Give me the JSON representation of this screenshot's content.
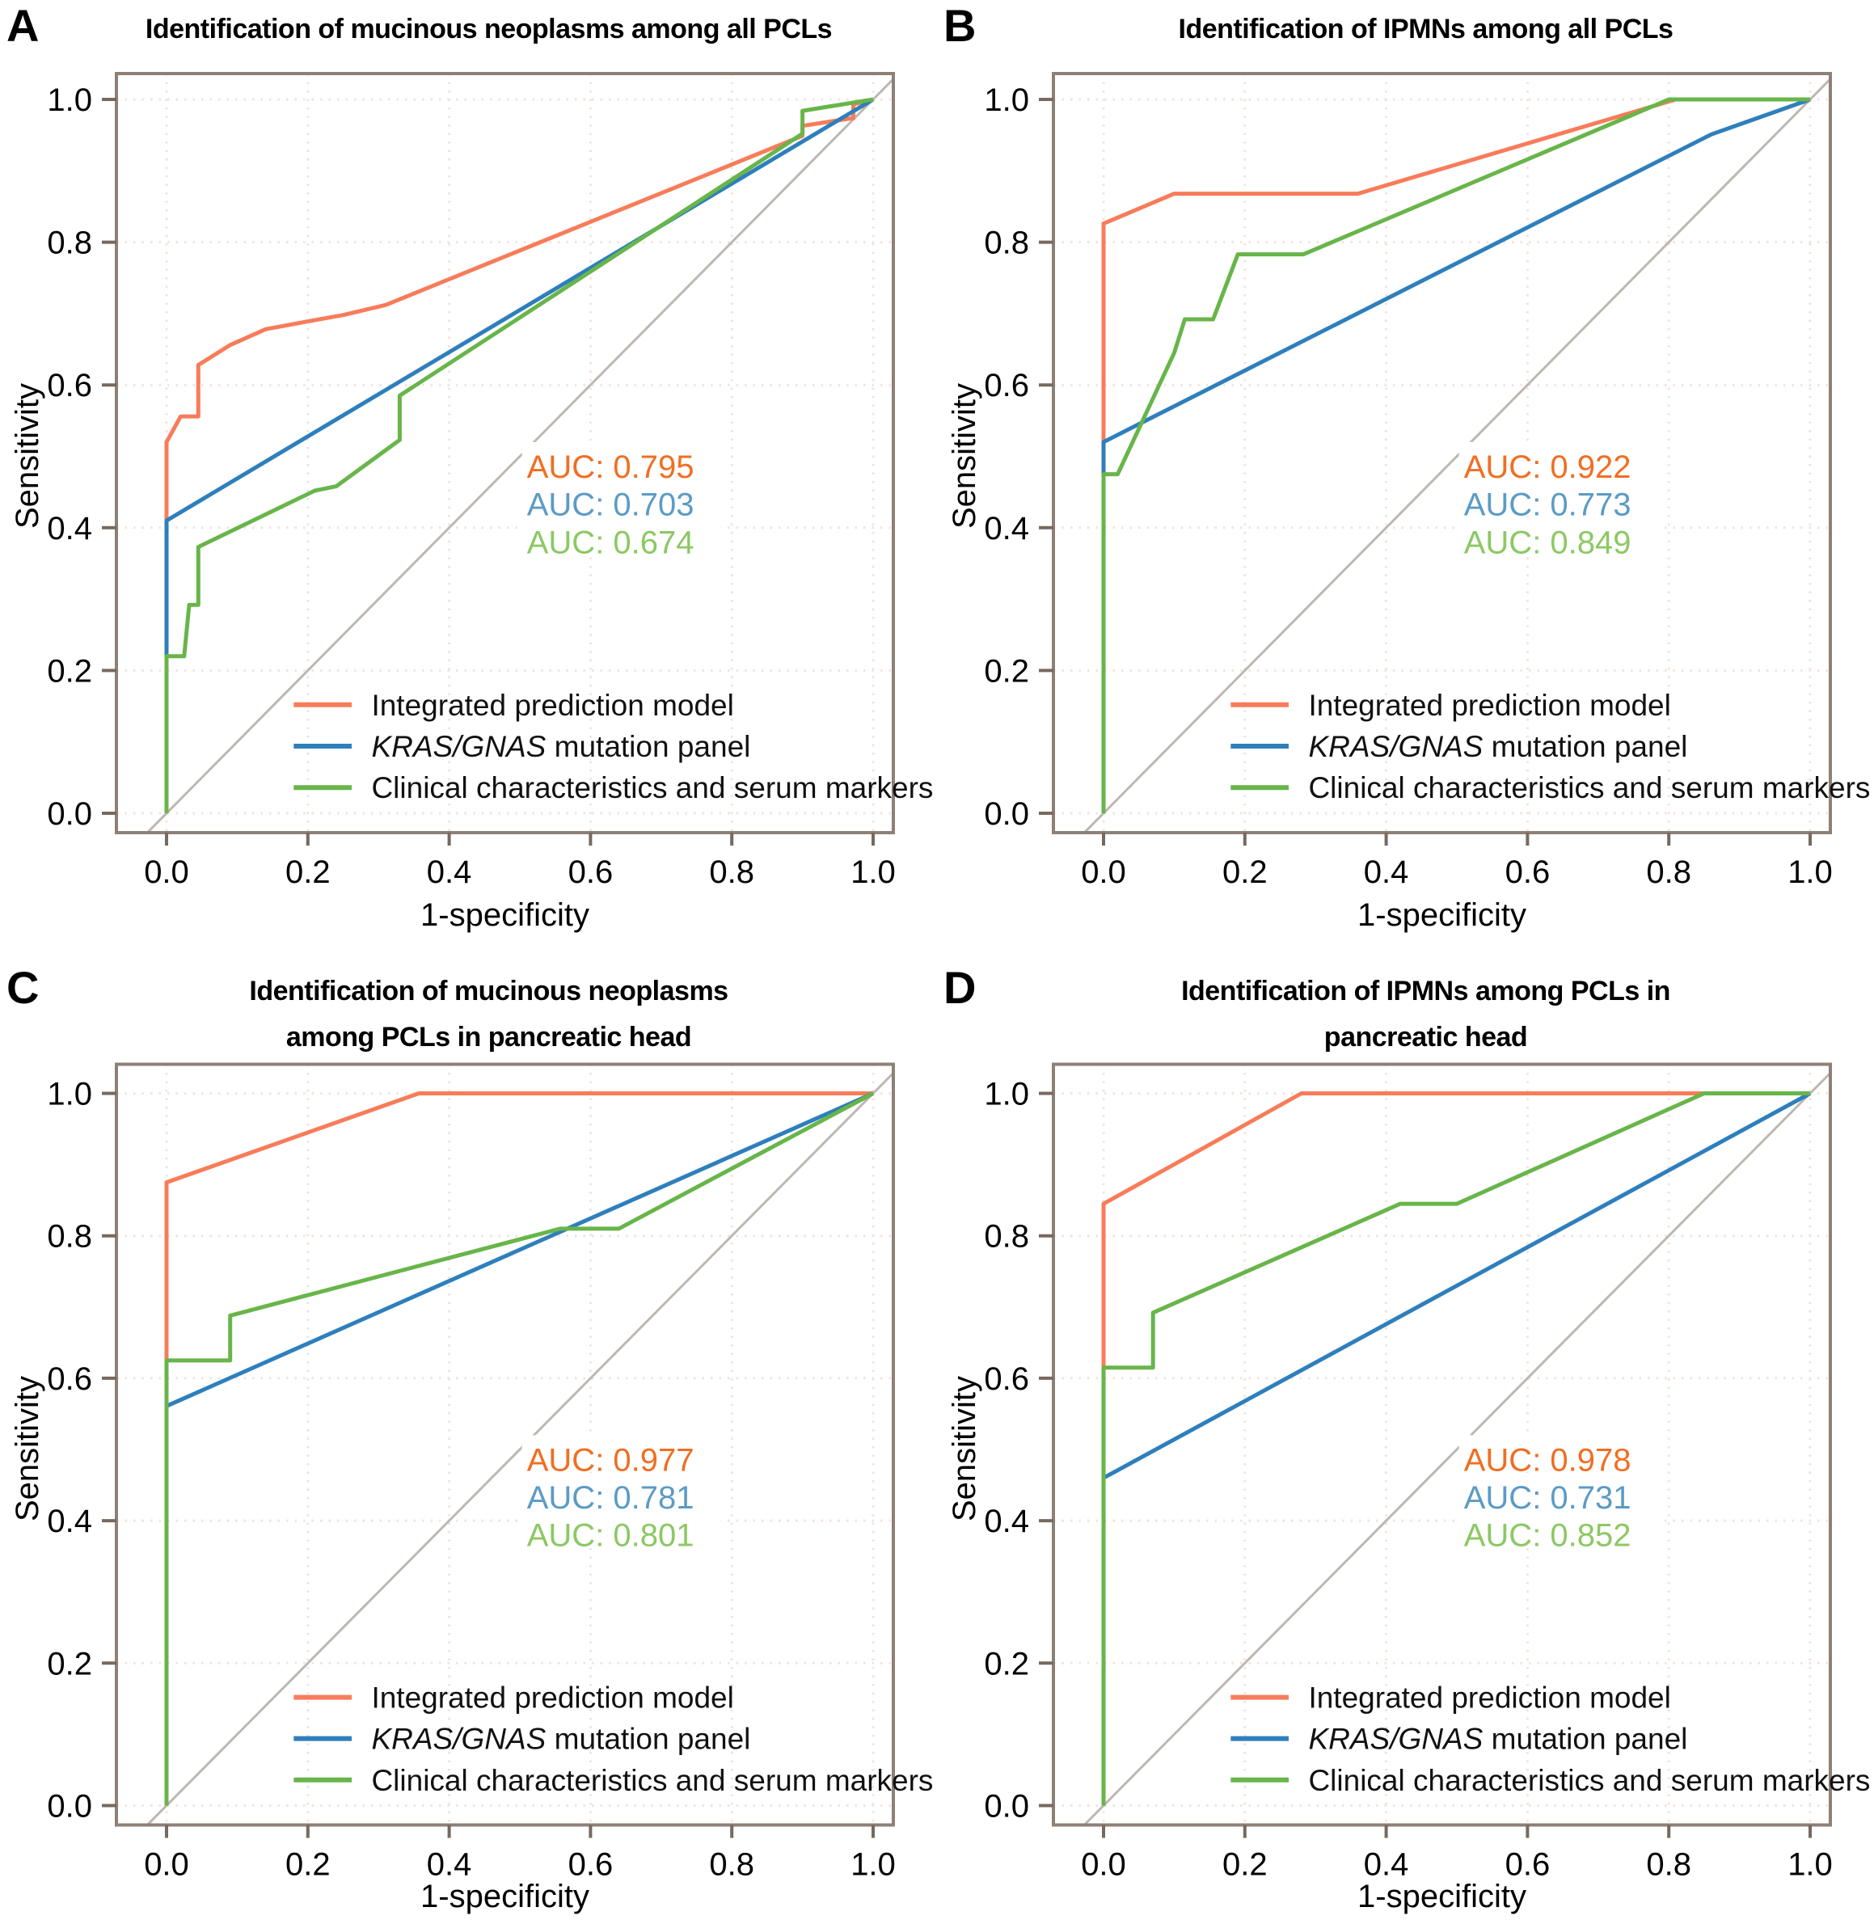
{
  "axes": {
    "xlabel": "1-specificity",
    "ylabel": "Sensitivity",
    "tick_labels": [
      "0.0",
      "0.2",
      "0.4",
      "0.6",
      "0.8",
      "1.0"
    ],
    "tick_values": [
      0,
      0.2,
      0.4,
      0.6,
      0.8,
      1.0
    ]
  },
  "colors": {
    "integrated": "#f87c5a",
    "kras": "#2e7fbc",
    "clinical": "#68b54a",
    "auc_integrated": "#f06e22",
    "auc_kras": "#5b9bc6",
    "auc_clinical": "#8cc863",
    "diagonal": "#bdb8b3",
    "frame": "#8e8076",
    "grid": "#f4e2de",
    "tick": "#77695f"
  },
  "legend": {
    "items": [
      {
        "key": "integrated",
        "label_italic": "",
        "label": "Integrated prediction model"
      },
      {
        "key": "kras",
        "label_italic": "KRAS/GNAS",
        "label": " mutation panel"
      },
      {
        "key": "clinical",
        "label_italic": "",
        "label": "Clinical characteristics and serum markers"
      }
    ]
  },
  "panels": [
    {
      "letter": "A",
      "title1": "Identification of mucinous neoplasms among all PCLs",
      "title2": "",
      "auc_labels": {
        "integrated": "AUC: 0.795",
        "kras": "AUC: 0.703",
        "clinical": "AUC: 0.674"
      }
    },
    {
      "letter": "B",
      "title1": "Identification of IPMNs among all PCLs",
      "title2": "",
      "auc_labels": {
        "integrated": "AUC: 0.922",
        "kras": "AUC: 0.773",
        "clinical": "AUC: 0.849"
      }
    },
    {
      "letter": "C",
      "title1": "Identification of mucinous neoplasms",
      "title2": "among PCLs in pancreatic head",
      "auc_labels": {
        "integrated": "AUC: 0.977",
        "kras": "AUC: 0.781",
        "clinical": "AUC: 0.801"
      }
    },
    {
      "letter": "D",
      "title1": "Identification of IPMNs among PCLs in",
      "title2": "pancreatic head",
      "auc_labels": {
        "integrated": "AUC: 0.978",
        "kras": "AUC: 0.731",
        "clinical": "AUC: 0.852"
      }
    }
  ],
  "chart_data": [
    {
      "panel": "A",
      "type": "line",
      "title": "Identification of mucinous neoplasms among all PCLs",
      "xlabel": "1-specificity",
      "ylabel": "Sensitivity",
      "xlim": [
        0,
        1
      ],
      "ylim": [
        0,
        1
      ],
      "xticks": [
        0,
        0.2,
        0.4,
        0.6,
        0.8,
        1.0
      ],
      "yticks": [
        0,
        0.2,
        0.4,
        0.6,
        0.8,
        1.0
      ],
      "grid": true,
      "diagonal_reference": true,
      "legend_position": "inside lower right",
      "series": [
        {
          "name": "Integrated prediction model",
          "key": "integrated",
          "auc": 0.795,
          "points": [
            [
              0,
              0
            ],
            [
              0,
              0.52
            ],
            [
              0.02,
              0.556
            ],
            [
              0.045,
              0.556
            ],
            [
              0.045,
              0.628
            ],
            [
              0.09,
              0.656
            ],
            [
              0.14,
              0.678
            ],
            [
              0.2,
              0.689
            ],
            [
              0.25,
              0.698
            ],
            [
              0.31,
              0.712
            ],
            [
              0.9,
              0.949
            ],
            [
              0.9,
              0.963
            ],
            [
              0.972,
              0.974
            ],
            [
              0.972,
              0.993
            ],
            [
              1,
              1
            ]
          ]
        },
        {
          "name": "KRAS/GNAS mutation panel",
          "key": "kras",
          "auc": 0.703,
          "points": [
            [
              0,
              0
            ],
            [
              0,
              0.41
            ],
            [
              1,
              1
            ]
          ]
        },
        {
          "name": "Clinical characteristics and serum markers",
          "key": "clinical",
          "auc": 0.674,
          "points": [
            [
              0,
              0
            ],
            [
              0,
              0.22
            ],
            [
              0.025,
              0.22
            ],
            [
              0.032,
              0.292
            ],
            [
              0.045,
              0.292
            ],
            [
              0.045,
              0.373
            ],
            [
              0.21,
              0.452
            ],
            [
              0.24,
              0.458
            ],
            [
              0.33,
              0.523
            ],
            [
              0.33,
              0.585
            ],
            [
              0.9,
              0.952
            ],
            [
              0.9,
              0.984
            ],
            [
              1,
              1
            ]
          ]
        }
      ]
    },
    {
      "panel": "B",
      "type": "line",
      "title": "Identification of IPMNs among all PCLs",
      "xlabel": "1-specificity",
      "ylabel": "Sensitivity",
      "xlim": [
        0,
        1
      ],
      "ylim": [
        0,
        1
      ],
      "xticks": [
        0,
        0.2,
        0.4,
        0.6,
        0.8,
        1.0
      ],
      "yticks": [
        0,
        0.2,
        0.4,
        0.6,
        0.8,
        1.0
      ],
      "grid": true,
      "diagonal_reference": true,
      "legend_position": "inside lower right",
      "series": [
        {
          "name": "Integrated prediction model",
          "key": "integrated",
          "auc": 0.922,
          "points": [
            [
              0,
              0
            ],
            [
              0,
              0.826
            ],
            [
              0.1,
              0.868
            ],
            [
              0.36,
              0.868
            ],
            [
              0.81,
              1
            ],
            [
              1,
              1
            ]
          ]
        },
        {
          "name": "KRAS/GNAS mutation panel",
          "key": "kras",
          "auc": 0.773,
          "points": [
            [
              0,
              0
            ],
            [
              0,
              0.52
            ],
            [
              0.86,
              0.951
            ],
            [
              1,
              1
            ]
          ]
        },
        {
          "name": "Clinical characteristics and serum markers",
          "key": "clinical",
          "auc": 0.849,
          "points": [
            [
              0,
              0
            ],
            [
              0,
              0.475
            ],
            [
              0.02,
              0.475
            ],
            [
              0.1,
              0.645
            ],
            [
              0.115,
              0.692
            ],
            [
              0.155,
              0.692
            ],
            [
              0.162,
              0.71
            ],
            [
              0.19,
              0.783
            ],
            [
              0.283,
              0.783
            ],
            [
              0.8,
              1
            ],
            [
              1,
              1
            ]
          ]
        }
      ]
    },
    {
      "panel": "C",
      "type": "line",
      "title": "Identification of mucinous neoplasms among PCLs in pancreatic head",
      "xlabel": "1-specificity",
      "ylabel": "Sensitivity",
      "xlim": [
        0,
        1
      ],
      "ylim": [
        0,
        1
      ],
      "xticks": [
        0,
        0.2,
        0.4,
        0.6,
        0.8,
        1.0
      ],
      "yticks": [
        0,
        0.2,
        0.4,
        0.6,
        0.8,
        1.0
      ],
      "grid": true,
      "diagonal_reference": true,
      "legend_position": "inside lower right",
      "series": [
        {
          "name": "Integrated prediction model",
          "key": "integrated",
          "auc": 0.977,
          "points": [
            [
              0,
              0
            ],
            [
              0,
              0.875
            ],
            [
              0.357,
              1
            ],
            [
              1,
              1
            ]
          ]
        },
        {
          "name": "KRAS/GNAS mutation panel",
          "key": "kras",
          "auc": 0.781,
          "points": [
            [
              0,
              0
            ],
            [
              0,
              0.561
            ],
            [
              1,
              1
            ]
          ]
        },
        {
          "name": "Clinical characteristics and serum markers",
          "key": "clinical",
          "auc": 0.801,
          "points": [
            [
              0,
              0
            ],
            [
              0,
              0.625
            ],
            [
              0.09,
              0.625
            ],
            [
              0.09,
              0.688
            ],
            [
              0.557,
              0.81
            ],
            [
              0.64,
              0.81
            ],
            [
              1,
              1
            ]
          ]
        }
      ]
    },
    {
      "panel": "D",
      "type": "line",
      "title": "Identification of IPMNs among PCLs in pancreatic head",
      "xlabel": "1-specificity",
      "ylabel": "Sensitivity",
      "xlim": [
        0,
        1
      ],
      "ylim": [
        0,
        1
      ],
      "xticks": [
        0,
        0.2,
        0.4,
        0.6,
        0.8,
        1.0
      ],
      "yticks": [
        0,
        0.2,
        0.4,
        0.6,
        0.8,
        1.0
      ],
      "grid": true,
      "diagonal_reference": true,
      "legend_position": "inside lower right",
      "series": [
        {
          "name": "Integrated prediction model",
          "key": "integrated",
          "auc": 0.978,
          "points": [
            [
              0,
              0
            ],
            [
              0,
              0.845
            ],
            [
              0.28,
              1
            ],
            [
              1,
              1
            ]
          ]
        },
        {
          "name": "KRAS/GNAS mutation panel",
          "key": "kras",
          "auc": 0.731,
          "points": [
            [
              0,
              0
            ],
            [
              0,
              0.46
            ],
            [
              1,
              1
            ]
          ]
        },
        {
          "name": "Clinical characteristics and serum markers",
          "key": "clinical",
          "auc": 0.852,
          "points": [
            [
              0,
              0
            ],
            [
              0,
              0.615
            ],
            [
              0.07,
              0.615
            ],
            [
              0.07,
              0.692
            ],
            [
              0.42,
              0.845
            ],
            [
              0.5,
              0.845
            ],
            [
              0.85,
              1
            ],
            [
              1,
              1
            ]
          ]
        }
      ]
    }
  ]
}
